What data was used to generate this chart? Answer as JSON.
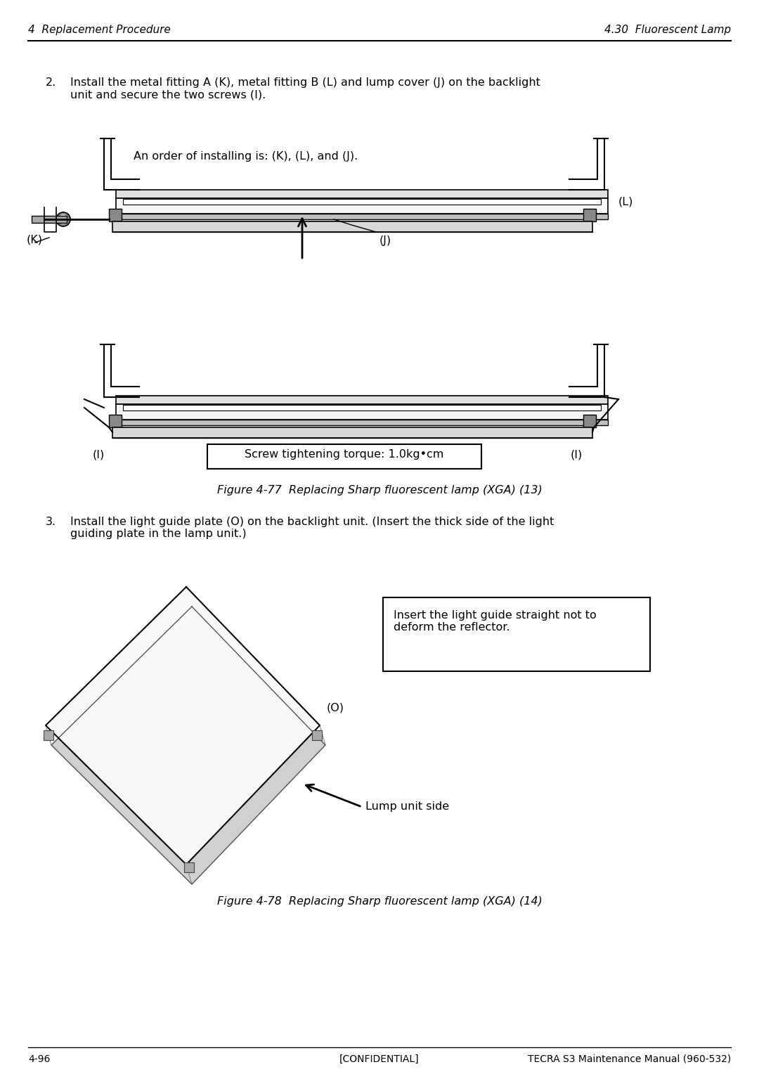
{
  "bg_color": "#ffffff",
  "text_color": "#000000",
  "header_left": "4  Replacement Procedure",
  "header_right": "4.30  Fluorescent Lamp",
  "footer_left": "4-96",
  "footer_center": "[CONFIDENTIAL]",
  "footer_right": "TECRA S3 Maintenance Manual (960-532)",
  "step2_text": "Install the metal fitting A (K), metal fitting B (L) and lump cover (J) on the backlight\nunit and secure the two screws (I).",
  "step3_text": "Install the light guide plate (O) on the backlight unit. (Insert the thick side of the light\nguiding plate in the lamp unit.)",
  "fig77_caption": "Figure 4-77  Replacing Sharp fluorescent lamp (XGA) (13)",
  "fig78_caption": "Figure 4-78  Replacing Sharp fluorescent lamp (XGA) (14)",
  "annotation_order": "An order of installing is: (K), (L), and (J).",
  "annotation_screw": "Screw tightening torque: 1.0kg•cm",
  "annotation_insert": "Insert the light guide straight not to\ndeform the reflector.",
  "label_K": "(K)",
  "label_L": "(L)",
  "label_J": "(J)",
  "label_I1": "(I)",
  "label_I2": "(I)",
  "label_O": "(O)",
  "label_lump": "Lump unit side"
}
